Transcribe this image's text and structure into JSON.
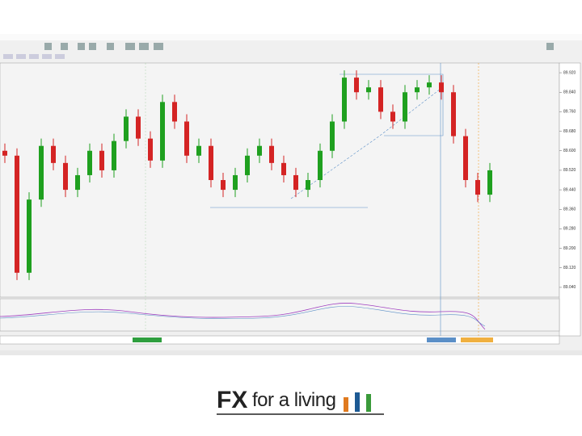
{
  "chart_data": {
    "type": "candlestick",
    "open": [
      89.6,
      89.58,
      89.1,
      89.4,
      89.62,
      89.55,
      89.44,
      89.5,
      89.6,
      89.52,
      89.64,
      89.74,
      89.65,
      89.56,
      89.8,
      89.72,
      89.58,
      89.62,
      89.48,
      89.44,
      89.5,
      89.58,
      89.62,
      89.55,
      89.5,
      89.44,
      89.48,
      89.6,
      89.72,
      89.9,
      89.84,
      89.86,
      89.76,
      89.72,
      89.84,
      89.86,
      89.88,
      89.84,
      89.66,
      89.48,
      89.42
    ],
    "high": [
      89.63,
      89.61,
      89.43,
      89.65,
      89.65,
      89.58,
      89.53,
      89.63,
      89.63,
      89.67,
      89.77,
      89.77,
      89.68,
      89.83,
      89.83,
      89.75,
      89.65,
      89.65,
      89.51,
      89.53,
      89.61,
      89.65,
      89.65,
      89.58,
      89.53,
      89.51,
      89.63,
      89.75,
      89.93,
      89.93,
      89.89,
      89.89,
      89.79,
      89.87,
      89.89,
      89.91,
      89.91,
      89.87,
      89.69,
      89.51,
      89.55
    ],
    "low": [
      89.55,
      89.07,
      89.07,
      89.37,
      89.52,
      89.41,
      89.41,
      89.47,
      89.49,
      89.49,
      89.61,
      89.62,
      89.53,
      89.53,
      89.69,
      89.55,
      89.55,
      89.45,
      89.41,
      89.41,
      89.47,
      89.55,
      89.52,
      89.47,
      89.41,
      89.41,
      89.45,
      89.57,
      89.69,
      89.81,
      89.81,
      89.73,
      89.69,
      89.69,
      89.81,
      89.83,
      89.81,
      89.63,
      89.45,
      89.39,
      89.39
    ],
    "close": [
      89.58,
      89.1,
      89.4,
      89.62,
      89.55,
      89.44,
      89.5,
      89.6,
      89.52,
      89.64,
      89.74,
      89.65,
      89.56,
      89.8,
      89.72,
      89.58,
      89.62,
      89.48,
      89.44,
      89.5,
      89.58,
      89.62,
      89.55,
      89.5,
      89.44,
      89.48,
      89.6,
      89.72,
      89.9,
      89.84,
      89.86,
      89.76,
      89.72,
      89.84,
      89.86,
      89.88,
      89.84,
      89.66,
      89.48,
      89.42,
      89.52
    ],
    "up_color": "#1fa01f",
    "down_color": "#d42424",
    "ylim": [
      89.0,
      89.96
    ],
    "yticks": [
      {
        "value": 89.04,
        "label": "89.040"
      },
      {
        "value": 89.12,
        "label": "89.120"
      },
      {
        "value": 89.2,
        "label": "89.200"
      },
      {
        "value": 89.28,
        "label": "89.280"
      },
      {
        "value": 89.36,
        "label": "89.360"
      },
      {
        "value": 89.44,
        "label": "89.440"
      },
      {
        "value": 89.52,
        "label": "89.520"
      },
      {
        "value": 89.6,
        "label": "89.600"
      },
      {
        "value": 89.68,
        "label": "89.680"
      },
      {
        "value": 89.76,
        "label": "89.760"
      },
      {
        "value": 89.84,
        "label": "89.840"
      },
      {
        "value": 89.92,
        "label": "89.920"
      }
    ]
  },
  "logo": {
    "bold": "FX",
    "text": "for a living"
  }
}
